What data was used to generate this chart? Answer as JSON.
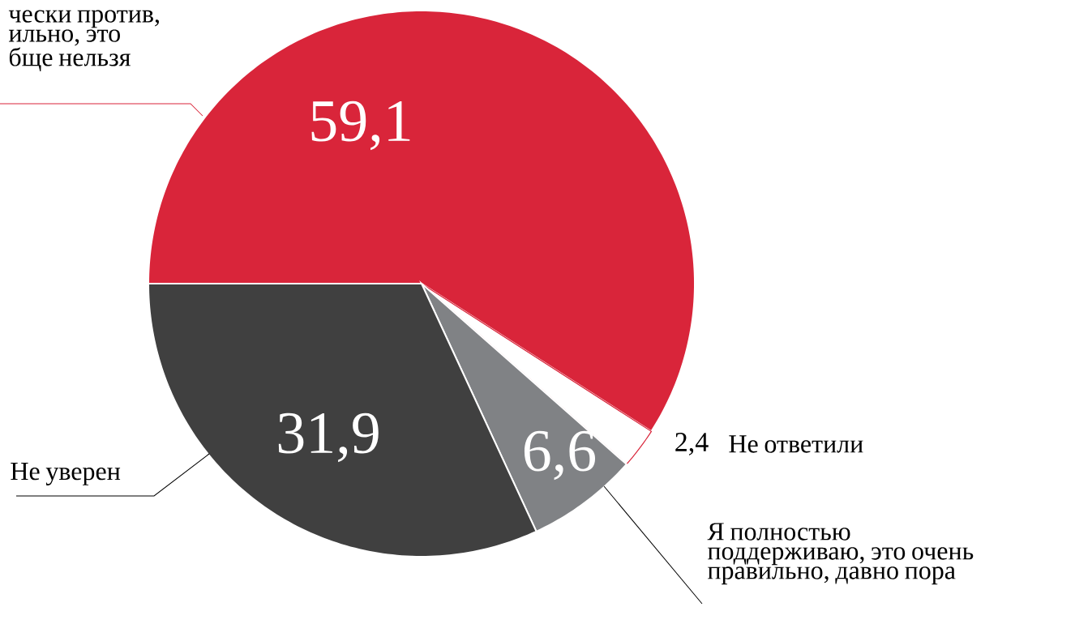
{
  "chart_data": {
    "type": "pie",
    "categories": [
      "чески против, ильно, это бще нельзя",
      "Не ответили",
      "Я полностью поддерживаю, это очень правильно, давно пора",
      "Не уверен"
    ],
    "values": [
      59.1,
      2.4,
      6.6,
      31.9
    ],
    "value_labels": [
      "59,1",
      "2,4",
      "6,6",
      "31,9"
    ],
    "colors": [
      "#d9253a",
      "#ffffff",
      "#808285",
      "#404040"
    ]
  }
}
